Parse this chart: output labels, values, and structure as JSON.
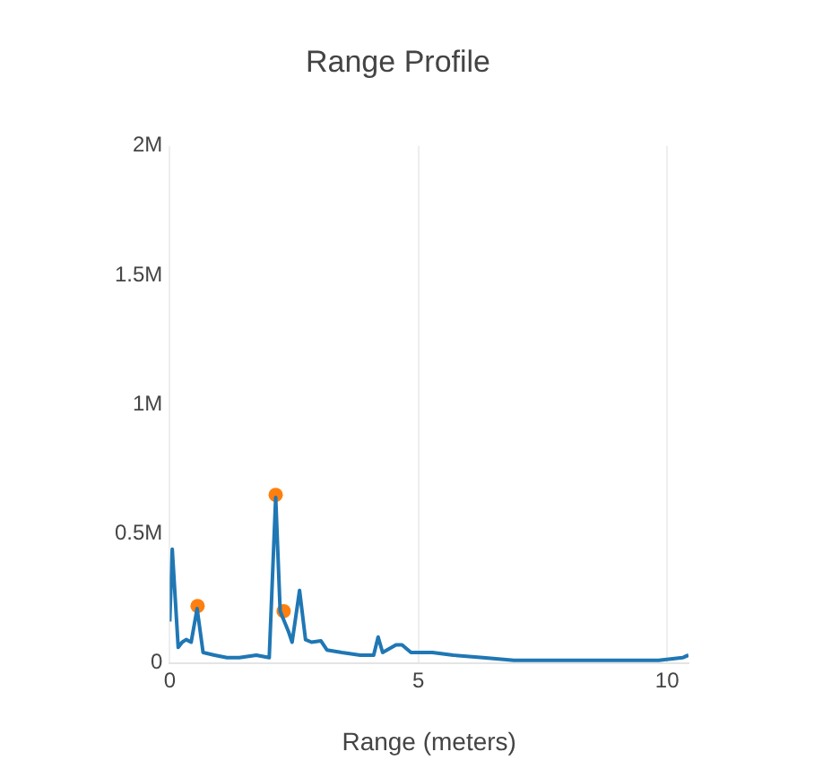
{
  "chart_data": {
    "type": "line",
    "title": "Range Profile",
    "xlabel": "Range (meters)",
    "xlim": [
      0,
      10.43
    ],
    "xticks": [
      0,
      5,
      10
    ],
    "ylim": [
      0,
      2000000
    ],
    "yticks": [
      0,
      {
        "value": 500000,
        "label": "0.5M"
      },
      {
        "value": 1000000,
        "label": "1M"
      },
      {
        "value": 1500000,
        "label": "1.5M"
      },
      {
        "value": 2000000,
        "label": "2M"
      }
    ],
    "grid": "x",
    "legend": false,
    "marker": "none",
    "series": [
      {
        "color": "#1f77b4",
        "x": [
          0,
          0.05,
          0.17,
          0.25,
          0.33,
          0.43,
          0.55,
          0.67,
          0.9,
          1.15,
          1.4,
          1.74,
          2.0,
          2.13,
          2.22,
          2.39,
          2.46,
          2.61,
          2.73,
          2.85,
          3.04,
          3.16,
          3.46,
          3.83,
          4.1,
          4.19,
          4.28,
          4.55,
          4.67,
          4.85,
          5.28,
          5.7,
          6.3,
          6.92,
          8.1,
          9.83,
          10.31,
          10.43
        ],
        "values": [
          160000,
          440000,
          60000,
          80000,
          90000,
          80000,
          210000,
          40000,
          30000,
          20000,
          20000,
          30000,
          20000,
          640000,
          200000,
          120000,
          80000,
          280000,
          90000,
          80000,
          85000,
          50000,
          40000,
          30000,
          30000,
          100000,
          40000,
          70000,
          70000,
          40000,
          40000,
          30000,
          20000,
          10000,
          10000,
          10000,
          20000,
          30000
        ]
      },
      {
        "type": "scatter",
        "color": "#ff7f0e",
        "marker": "circle",
        "x": [
          0.56,
          2.13,
          2.29
        ],
        "values": [
          220000,
          650000,
          200000
        ]
      }
    ]
  }
}
